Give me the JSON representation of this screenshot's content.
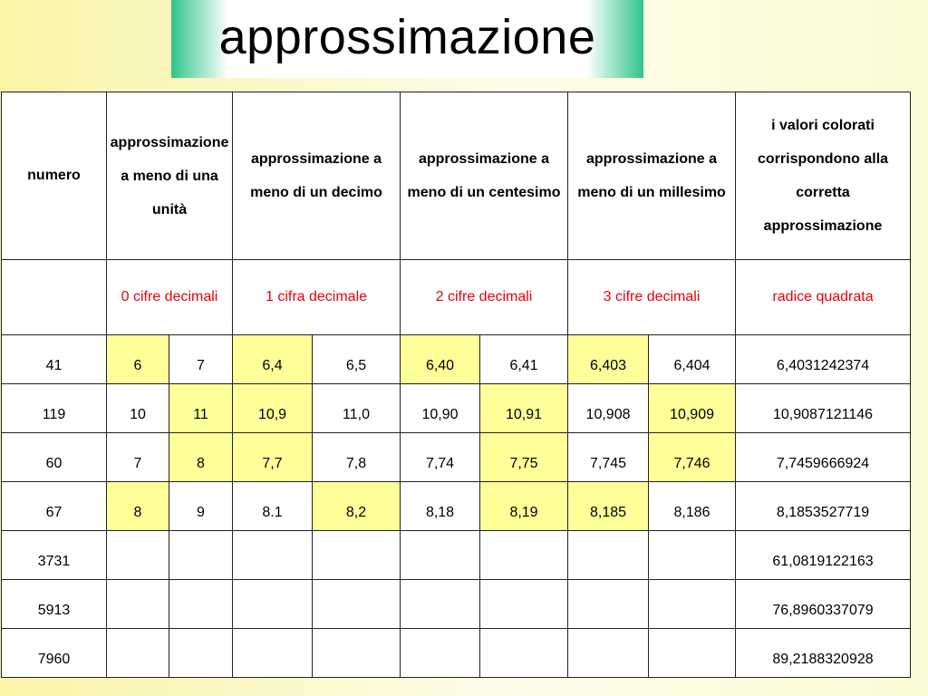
{
  "title": "approssimazione",
  "headers": {
    "numero": "numero",
    "unita": "approssimazione a meno di una unità",
    "decimo": "approssimazione a meno di un decimo",
    "centesimo": "approssimazione a meno di un centesimo",
    "millesimo": "approssimazione a meno di un millesimo",
    "note": "i valori colorati corrispondono alla corretta approssimazione"
  },
  "subheaders": {
    "unita": "0 cifre decimali",
    "decimo": "1 cifra decimale",
    "centesimo": "2 cifre decimali",
    "millesimo": "3 cifre decimali",
    "note": "radice quadrata"
  },
  "colors": {
    "highlight": "#ffff99",
    "red_text": "#e8000b",
    "title_accent": "#2fc48a"
  },
  "rows": [
    {
      "numero": "41",
      "u1": "6",
      "u2": "7",
      "d1": "6,4",
      "d2": "6,5",
      "c1": "6,40",
      "c2": "6,41",
      "m1": "6,403",
      "m2": "6,404",
      "radice": "6,4031242374",
      "highlighted": [
        "u1",
        "d1",
        "c1",
        "m1"
      ]
    },
    {
      "numero": "119",
      "u1": "10",
      "u2": "11",
      "d1": "10,9",
      "d2": "11,0",
      "c1": "10,90",
      "c2": "10,91",
      "m1": "10,908",
      "m2": "10,909",
      "radice": "10,9087121146",
      "highlighted": [
        "u2",
        "d1",
        "c2",
        "m2"
      ]
    },
    {
      "numero": "60",
      "u1": "7",
      "u2": "8",
      "d1": "7,7",
      "d2": "7,8",
      "c1": "7,74",
      "c2": "7,75",
      "m1": "7,745",
      "m2": "7,746",
      "radice": "7,7459666924",
      "highlighted": [
        "u2",
        "d1",
        "c2",
        "m2"
      ]
    },
    {
      "numero": "67",
      "u1": "8",
      "u2": "9",
      "d1": "8.1",
      "d2": "8,2",
      "c1": "8,18",
      "c2": "8,19",
      "m1": "8,185",
      "m2": "8,186",
      "radice": "8,1853527719",
      "highlighted": [
        "u1",
        "d2",
        "c2",
        "m1"
      ]
    },
    {
      "numero": "3731",
      "u1": "",
      "u2": "",
      "d1": "",
      "d2": "",
      "c1": "",
      "c2": "",
      "m1": "",
      "m2": "",
      "radice": "61,0819122163",
      "highlighted": []
    },
    {
      "numero": "5913",
      "u1": "",
      "u2": "",
      "d1": "",
      "d2": "",
      "c1": "",
      "c2": "",
      "m1": "",
      "m2": "",
      "radice": "76,8960337079",
      "highlighted": []
    },
    {
      "numero": "7960",
      "u1": "",
      "u2": "",
      "d1": "",
      "d2": "",
      "c1": "",
      "c2": "",
      "m1": "",
      "m2": "",
      "radice": "89,2188320928",
      "highlighted": []
    }
  ]
}
